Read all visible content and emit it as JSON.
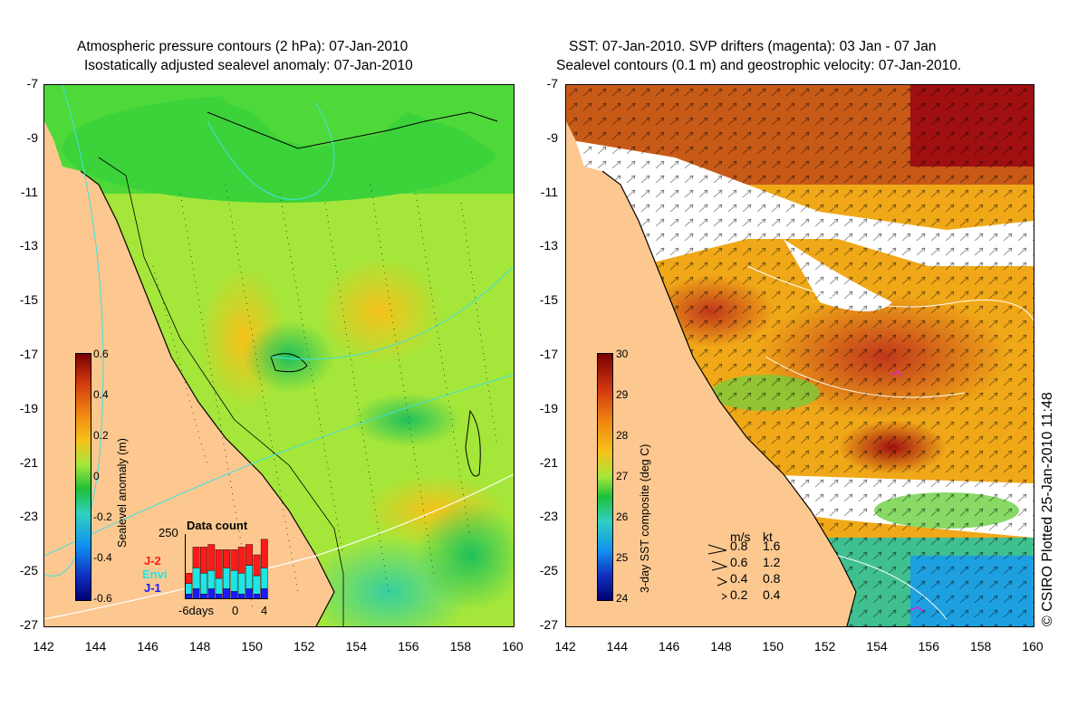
{
  "left_panel": {
    "title_line1": "Atmospheric pressure contours (2 hPa): 07-Jan-2010",
    "title_line2": "Isostatically adjusted sealevel anomaly: 07-Jan-2010",
    "colorbar": {
      "label": "Sealevel anomaly (m)",
      "ticks": [
        "0.6",
        "0.4",
        "0.2",
        "0",
        "-0.2",
        "-0.4",
        "-0.6"
      ]
    },
    "inset": {
      "title": "Data count",
      "y_top": "250",
      "x_ticks": [
        "-6days",
        "0",
        "4"
      ],
      "legend": [
        {
          "label": "J-2",
          "color": "#ff1a1a"
        },
        {
          "label": "Envi",
          "color": "#1ee6e6"
        },
        {
          "label": "J-1",
          "color": "#1a1aff"
        }
      ],
      "bars": [
        {
          "j1": 20,
          "envi": 40,
          "j2": 40
        },
        {
          "j1": 40,
          "envi": 80,
          "j2": 80
        },
        {
          "j1": 20,
          "envi": 80,
          "j2": 100
        },
        {
          "j1": 40,
          "envi": 70,
          "j2": 100
        },
        {
          "j1": 20,
          "envi": 60,
          "j2": 110
        },
        {
          "j1": 40,
          "envi": 80,
          "j2": 70
        },
        {
          "j1": 30,
          "envi": 80,
          "j2": 80
        },
        {
          "j1": 20,
          "envi": 80,
          "j2": 100
        },
        {
          "j1": 40,
          "envi": 90,
          "j2": 80
        },
        {
          "j1": 20,
          "envi": 70,
          "j2": 80
        },
        {
          "j1": 40,
          "envi": 80,
          "j2": 110
        }
      ]
    }
  },
  "right_panel": {
    "title_line1": "SST: 07-Jan-2010. SVP drifters (magenta): 03 Jan - 07 Jan",
    "title_line2": "Sealevel contours (0.1 m) and geostrophic velocity: 07-Jan-2010.",
    "colorbar": {
      "label": "3-day SST composite (deg C)",
      "ticks": [
        "30",
        "29",
        "28",
        "27",
        "26",
        "25",
        "24"
      ]
    },
    "velocity_legend": {
      "header_ms": "m/s",
      "header_kt": "kt",
      "rows": [
        {
          "ms": "0.8",
          "kt": "1.6"
        },
        {
          "ms": "0.6",
          "kt": "1.2"
        },
        {
          "ms": "0.4",
          "kt": "0.8"
        },
        {
          "ms": "0.2",
          "kt": "0.4"
        }
      ]
    }
  },
  "axes": {
    "lat_ticks": [
      "-7",
      "-9",
      "-11",
      "-13",
      "-15",
      "-17",
      "-19",
      "-21",
      "-23",
      "-25",
      "-27"
    ],
    "lon_ticks": [
      "142",
      "144",
      "146",
      "148",
      "150",
      "152",
      "154",
      "156",
      "158",
      "160"
    ]
  },
  "credit": "© CSIRO Plotted 25-Jan-2010 11:48",
  "colors": {
    "land": "#fcc890",
    "sst_cold_blue": "#1464ff",
    "drifter_magenta": "#e020e0",
    "contour_cyan": "#40e0e0"
  }
}
